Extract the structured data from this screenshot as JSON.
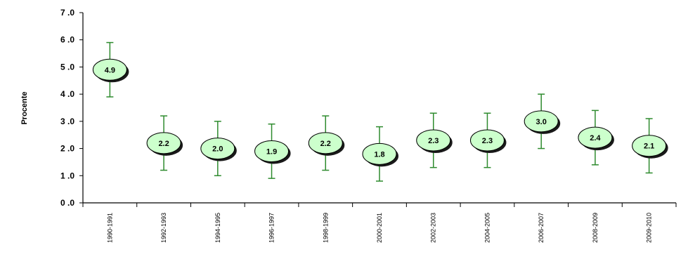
{
  "chart_data": {
    "type": "scatter",
    "ylabel": "Procente",
    "xlabel": "",
    "title": "",
    "ylim": [
      0,
      7
    ],
    "yticks": [
      "0.0",
      "1.0",
      "2.0",
      "3.0",
      "4.0",
      "5.0",
      "6.0",
      "7.0"
    ],
    "categories": [
      "1990-1991",
      "1992-1993",
      "1994-1995",
      "1996-1997",
      "1998-1999",
      "2000-2001",
      "2002-2003",
      "2004-2005",
      "2006-2007",
      "2008-2009",
      "2009-2010"
    ],
    "values": [
      4.9,
      2.2,
      2.0,
      1.9,
      2.2,
      1.8,
      2.3,
      2.3,
      3.0,
      2.4,
      2.1
    ],
    "value_labels": [
      "4.9",
      "2.2",
      "2.0",
      "1.9",
      "2.2",
      "1.8",
      "2.3",
      "2.3",
      "3.0",
      "2.4",
      "2.1"
    ],
    "error_low": [
      3.9,
      1.2,
      1.0,
      0.9,
      1.2,
      0.8,
      1.3,
      1.3,
      2.0,
      1.4,
      1.1
    ],
    "error_high": [
      5.9,
      3.2,
      3.0,
      2.9,
      3.2,
      2.8,
      3.3,
      3.3,
      4.0,
      3.4,
      3.1
    ],
    "grid": false,
    "colors": {
      "marker_fill": "#ccffcc",
      "marker_stroke": "#000000",
      "marker_shadow": "#1a1a1a",
      "error_bar": "#2e8b2e",
      "axis": "#000000"
    }
  }
}
